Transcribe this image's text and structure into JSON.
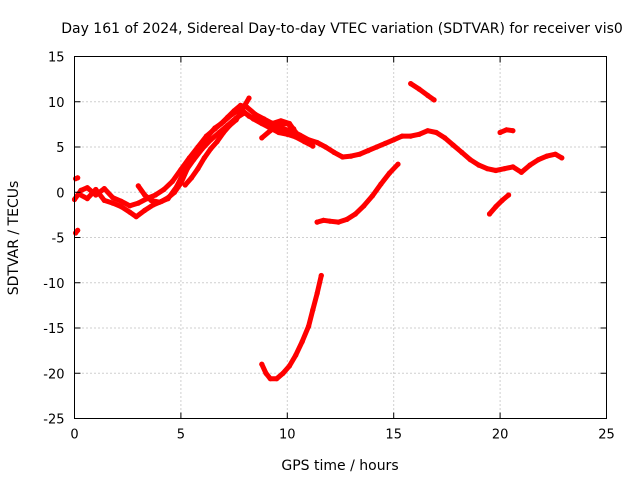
{
  "chart_data": {
    "type": "scatter",
    "title": "Day 161 of 2024, Sidereal Day-to-day VTEC variation (SDTVAR) for receiver vis0",
    "xlabel": "GPS time / hours",
    "ylabel": "SDTVAR / TECUs",
    "xlim": [
      0,
      25
    ],
    "ylim": [
      -25,
      15
    ],
    "grid": true,
    "legend": "none",
    "x_ticks": [
      0,
      5,
      10,
      15,
      20,
      25
    ],
    "y_ticks": [
      -25,
      -20,
      -15,
      -10,
      -5,
      0,
      5,
      10,
      15
    ],
    "x_tick_labels": [
      "0",
      "5",
      "10",
      "15",
      "20",
      "25"
    ],
    "y_tick_labels": [
      "-25",
      "-20",
      "-15",
      "-10",
      "-5",
      "0",
      "5",
      "10",
      "15"
    ],
    "color": "#ff0000",
    "series": [
      {
        "name": "main-track-a",
        "points": [
          [
            0.0,
            -0.8
          ],
          [
            0.3,
            0.2
          ],
          [
            0.6,
            0.5
          ],
          [
            1.0,
            -0.3
          ],
          [
            1.4,
            0.4
          ],
          [
            1.8,
            -0.6
          ],
          [
            2.2,
            -1.0
          ],
          [
            2.6,
            -1.5
          ],
          [
            3.0,
            -1.2
          ],
          [
            3.4,
            -0.7
          ],
          [
            3.8,
            -0.3
          ],
          [
            4.2,
            0.3
          ],
          [
            4.6,
            1.2
          ],
          [
            5.0,
            2.5
          ],
          [
            5.4,
            3.8
          ],
          [
            5.8,
            5.0
          ],
          [
            6.2,
            6.2
          ],
          [
            6.6,
            7.0
          ],
          [
            7.0,
            7.8
          ],
          [
            7.4,
            8.6
          ],
          [
            7.8,
            9.2
          ],
          [
            8.2,
            8.4
          ],
          [
            8.6,
            8.0
          ],
          [
            9.0,
            7.6
          ],
          [
            9.4,
            7.3
          ],
          [
            9.8,
            7.0
          ],
          [
            10.2,
            6.8
          ],
          [
            10.6,
            6.3
          ],
          [
            11.0,
            5.8
          ],
          [
            11.4,
            5.5
          ],
          [
            11.8,
            5.0
          ],
          [
            12.2,
            4.4
          ],
          [
            12.6,
            3.9
          ],
          [
            13.0,
            4.0
          ],
          [
            13.4,
            4.2
          ],
          [
            13.8,
            4.6
          ],
          [
            14.2,
            5.0
          ],
          [
            14.6,
            5.4
          ],
          [
            15.0,
            5.8
          ],
          [
            15.4,
            6.2
          ],
          [
            15.8,
            6.2
          ],
          [
            16.2,
            6.4
          ],
          [
            16.6,
            6.8
          ],
          [
            17.0,
            6.6
          ],
          [
            17.4,
            6.0
          ],
          [
            17.8,
            5.2
          ],
          [
            18.2,
            4.4
          ],
          [
            18.6,
            3.6
          ],
          [
            19.0,
            3.0
          ],
          [
            19.4,
            2.6
          ],
          [
            19.8,
            2.4
          ],
          [
            20.2,
            2.6
          ],
          [
            20.6,
            2.8
          ],
          [
            21.0,
            2.2
          ],
          [
            21.4,
            3.0
          ],
          [
            21.8,
            3.6
          ],
          [
            22.2,
            4.0
          ],
          [
            22.6,
            4.2
          ],
          [
            22.9,
            3.8
          ]
        ]
      },
      {
        "name": "main-track-b",
        "points": [
          [
            0.2,
            -0.2
          ],
          [
            0.6,
            -0.7
          ],
          [
            1.0,
            0.3
          ],
          [
            1.4,
            -0.9
          ],
          [
            1.8,
            -1.2
          ],
          [
            2.2,
            -1.6
          ],
          [
            2.6,
            -2.2
          ],
          [
            2.9,
            -2.7
          ],
          [
            3.3,
            -2.0
          ],
          [
            3.7,
            -1.4
          ],
          [
            4.1,
            -1.0
          ],
          [
            4.4,
            -0.6
          ],
          [
            4.7,
            0.0
          ],
          [
            5.0,
            1.0
          ],
          [
            5.3,
            2.6
          ],
          [
            5.6,
            3.6
          ],
          [
            6.0,
            4.8
          ],
          [
            6.4,
            5.8
          ],
          [
            6.8,
            6.6
          ],
          [
            7.2,
            7.4
          ],
          [
            7.6,
            8.2
          ],
          [
            8.0,
            8.8
          ],
          [
            8.4,
            8.1
          ],
          [
            8.8,
            7.6
          ],
          [
            9.2,
            7.1
          ],
          [
            9.6,
            6.6
          ],
          [
            10.0,
            6.4
          ],
          [
            10.4,
            6.1
          ],
          [
            10.8,
            5.6
          ],
          [
            11.2,
            5.1
          ]
        ]
      },
      {
        "name": "main-track-c",
        "points": [
          [
            5.2,
            0.8
          ],
          [
            5.5,
            1.6
          ],
          [
            5.8,
            2.6
          ],
          [
            6.1,
            3.8
          ],
          [
            6.4,
            4.8
          ],
          [
            6.7,
            5.6
          ],
          [
            7.0,
            6.6
          ],
          [
            7.3,
            7.4
          ],
          [
            7.6,
            8.0
          ],
          [
            7.9,
            9.2
          ],
          [
            8.2,
            10.4
          ]
        ]
      },
      {
        "name": "main-track-d",
        "points": [
          [
            3.0,
            0.7
          ],
          [
            3.3,
            -0.3
          ],
          [
            3.6,
            -0.9
          ],
          [
            4.0,
            -1.1
          ],
          [
            4.4,
            -0.7
          ],
          [
            4.8,
            0.6
          ],
          [
            5.1,
            2.0
          ],
          [
            5.4,
            3.1
          ],
          [
            5.7,
            4.2
          ],
          [
            6.0,
            5.4
          ],
          [
            6.3,
            6.3
          ],
          [
            6.6,
            7.1
          ],
          [
            6.9,
            7.6
          ],
          [
            7.2,
            8.3
          ],
          [
            7.5,
            9.0
          ],
          [
            7.8,
            9.6
          ],
          [
            8.1,
            9.4
          ],
          [
            8.5,
            8.6
          ],
          [
            8.9,
            8.1
          ],
          [
            9.3,
            7.6
          ],
          [
            9.7,
            7.9
          ],
          [
            10.1,
            7.6
          ],
          [
            10.4,
            6.6
          ]
        ]
      },
      {
        "name": "branch-descending",
        "points": [
          [
            8.8,
            6.0
          ],
          [
            9.2,
            6.8
          ],
          [
            9.6,
            7.4
          ],
          [
            10.0,
            7.6
          ],
          [
            10.3,
            7.0
          ]
        ]
      },
      {
        "name": "dip-track",
        "points": [
          [
            8.8,
            -19.0
          ],
          [
            9.0,
            -20.0
          ],
          [
            9.2,
            -20.6
          ],
          [
            9.5,
            -20.6
          ],
          [
            9.8,
            -20.0
          ],
          [
            10.1,
            -19.2
          ],
          [
            10.4,
            -18.0
          ],
          [
            10.7,
            -16.5
          ],
          [
            11.0,
            -14.8
          ],
          [
            11.2,
            -13.0
          ],
          [
            11.4,
            -11.2
          ],
          [
            11.6,
            -9.2
          ]
        ]
      },
      {
        "name": "rising-track",
        "points": [
          [
            11.4,
            -3.3
          ],
          [
            11.7,
            -3.1
          ],
          [
            12.0,
            -3.2
          ],
          [
            12.4,
            -3.3
          ],
          [
            12.8,
            -3.0
          ],
          [
            13.2,
            -2.4
          ],
          [
            13.6,
            -1.5
          ],
          [
            14.0,
            -0.4
          ],
          [
            14.4,
            0.9
          ],
          [
            14.8,
            2.1
          ],
          [
            15.2,
            3.1
          ]
        ]
      },
      {
        "name": "short-track-top",
        "points": [
          [
            15.8,
            12.0
          ],
          [
            16.2,
            11.4
          ],
          [
            16.6,
            10.7
          ],
          [
            16.9,
            10.2
          ]
        ]
      },
      {
        "name": "short-track-right-high",
        "points": [
          [
            20.0,
            6.6
          ],
          [
            20.3,
            6.9
          ],
          [
            20.6,
            6.8
          ]
        ]
      },
      {
        "name": "short-track-right-low",
        "points": [
          [
            19.5,
            -2.4
          ],
          [
            19.8,
            -1.6
          ],
          [
            20.1,
            -0.9
          ],
          [
            20.4,
            -0.3
          ]
        ]
      },
      {
        "name": "left-marker-1",
        "points": [
          [
            0.05,
            -4.5
          ],
          [
            0.15,
            -4.2
          ]
        ]
      },
      {
        "name": "left-marker-2",
        "points": [
          [
            0.05,
            1.5
          ],
          [
            0.15,
            1.6
          ]
        ]
      }
    ]
  }
}
